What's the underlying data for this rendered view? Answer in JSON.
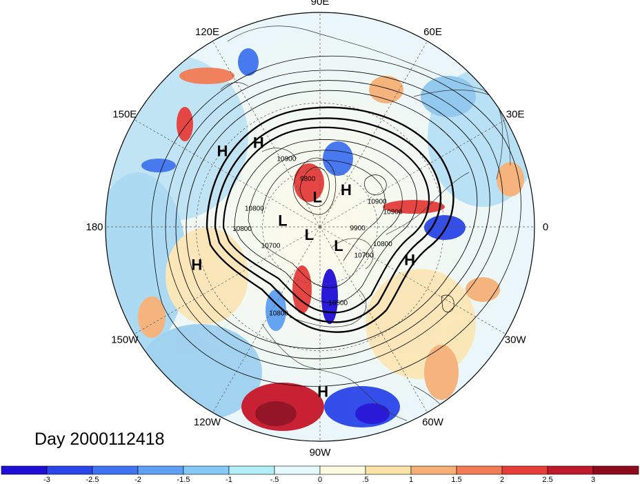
{
  "map": {
    "projection": "north polar stereographic",
    "lon_labels": [
      {
        "text": "90E",
        "lon": 90
      },
      {
        "text": "60E",
        "lon": 60
      },
      {
        "text": "30E",
        "lon": 30
      },
      {
        "text": "0",
        "lon": 0
      },
      {
        "text": "30W",
        "lon": -30
      },
      {
        "text": "60W",
        "lon": -60
      },
      {
        "text": "90W",
        "lon": -90
      },
      {
        "text": "120W",
        "lon": -120
      },
      {
        "text": "150W",
        "lon": -150
      },
      {
        "text": "180",
        "lon": 180
      },
      {
        "text": "150E",
        "lon": 150
      },
      {
        "text": "120E",
        "lon": 120
      }
    ],
    "pressure_centers": [
      {
        "type": "H",
        "lon": 142,
        "lat": 30
      },
      {
        "type": "H",
        "lon": 126,
        "lat": 38
      },
      {
        "type": "L",
        "lon": 95,
        "lat": 74
      },
      {
        "type": "H",
        "lon": 55,
        "lat": 66
      },
      {
        "type": "L",
        "lon": 170,
        "lat": 70
      },
      {
        "type": "L",
        "lon": -145,
        "lat": 83
      },
      {
        "type": "L",
        "lon": -45,
        "lat": 76
      },
      {
        "type": "H",
        "lon": -20,
        "lat": 42
      },
      {
        "type": "H",
        "lon": -163,
        "lat": 28
      },
      {
        "type": "H",
        "lon": -89,
        "lat": 15
      }
    ],
    "contour_labels": [
      {
        "text": "10900",
        "lon": 117,
        "lat": 52
      },
      {
        "text": "9800",
        "lon": 105,
        "lat": 65
      },
      {
        "text": "10900",
        "lon": 22,
        "lat": 58
      },
      {
        "text": "10900",
        "lon": 10,
        "lat": 52
      },
      {
        "text": "9900",
        "lon": -5,
        "lat": 70
      },
      {
        "text": "10800",
        "lon": -17,
        "lat": 56
      },
      {
        "text": "10700",
        "lon": -35,
        "lat": 62
      },
      {
        "text": "10800",
        "lon": 166,
        "lat": 55
      },
      {
        "text": "10800",
        "lon": -177,
        "lat": 50
      },
      {
        "text": "10700",
        "lon": -157,
        "lat": 62
      },
      {
        "text": "10800",
        "lon": -115,
        "lat": 41
      },
      {
        "text": "10500",
        "lon": -77,
        "lat": 49
      }
    ]
  },
  "title": {
    "day_label": "Day 2000112418"
  },
  "colorbar": {
    "colors": [
      "#1f0fd6",
      "#2a45e8",
      "#3f73ef",
      "#5ea0f4",
      "#84c9f8",
      "#b2eef8",
      "#e4fafc",
      "#fefadf",
      "#fbe2a6",
      "#f6b077",
      "#f07b55",
      "#e43d3a",
      "#bf1a2a",
      "#8e0a1d"
    ],
    "tick_labels": [
      "-3",
      "-2.5",
      "-2",
      "-1.5",
      "-1",
      "-.5",
      "0",
      ".5",
      "1",
      "1.5",
      "2",
      "2.5",
      "3"
    ]
  }
}
